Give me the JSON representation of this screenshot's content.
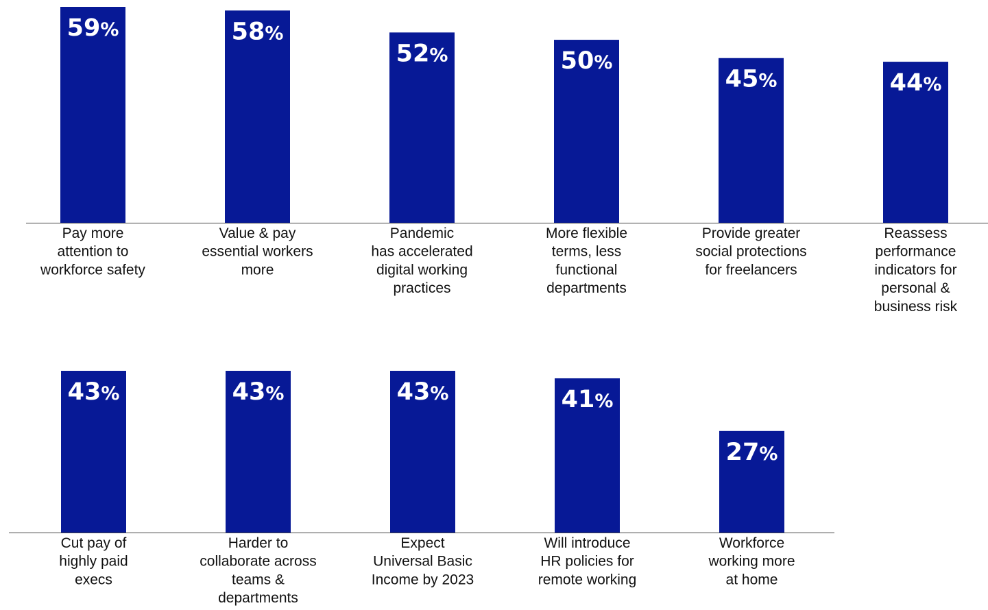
{
  "chart_data": [
    {
      "type": "bar",
      "categories": [
        "Pay more attention to workforce safety",
        "Value & pay essential workers more",
        "Pandemic has accelerated digital working practices",
        "More flexible terms, less functional departments",
        "Provide greater social protections for freelancers",
        "Reassess performance indicators for personal & business risk"
      ],
      "category_lines": [
        [
          "Pay more",
          "attention to",
          "workforce safety"
        ],
        [
          "Value & pay",
          "essential workers",
          "more"
        ],
        [
          "Pandemic",
          "has accelerated",
          "digital working",
          "practices"
        ],
        [
          "More flexible",
          "terms, less",
          "functional",
          "departments"
        ],
        [
          "Provide greater",
          "social protections",
          "for freelancers"
        ],
        [
          "Reassess",
          "performance",
          "indicators for",
          "personal &",
          "business risk"
        ]
      ],
      "values": [
        59,
        58,
        52,
        50,
        45,
        44
      ],
      "value_suffix": "%",
      "ylim": [
        0,
        59
      ],
      "grid": false
    },
    {
      "type": "bar",
      "categories": [
        "Cut pay of highly paid execs",
        "Harder to collaborate across teams & departments",
        "Expect Universal Basic Income by 2023",
        "Will introduce HR policies for remote working",
        "Workforce working more at home"
      ],
      "category_lines": [
        [
          "Cut pay of",
          "highly paid",
          "execs"
        ],
        [
          "Harder to",
          "collaborate across",
          "teams &",
          "departments"
        ],
        [
          "Expect",
          "Universal Basic",
          "Income by 2023"
        ],
        [
          "Will introduce",
          "HR policies for",
          "remote working"
        ],
        [
          "Workforce",
          "working more",
          "at home"
        ]
      ],
      "values": [
        43,
        43,
        43,
        41,
        27
      ],
      "value_suffix": "%",
      "ylim": [
        0,
        43
      ],
      "grid": false
    }
  ],
  "colors": {
    "bar": "#071996",
    "value_text": "#ffffff",
    "label_text": "#111111",
    "axis": "#444444"
  }
}
